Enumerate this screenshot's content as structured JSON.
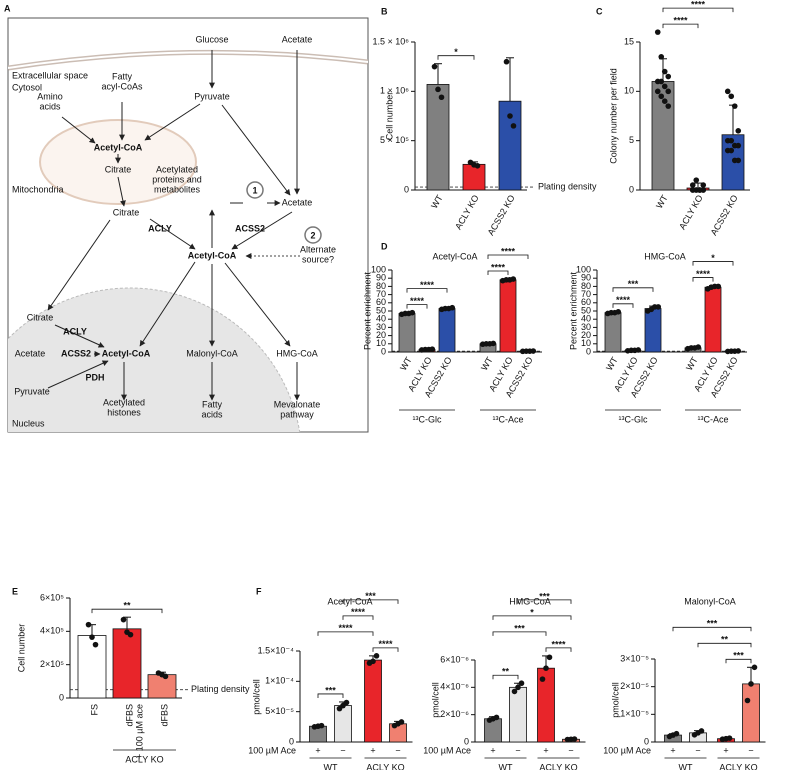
{
  "diagram": {
    "panel": "A",
    "regions": [
      "Extracellular space",
      "Cytosol",
      "Mitochondria",
      "Nucleus"
    ],
    "markers": [
      "1",
      "2"
    ],
    "nodes": [
      {
        "text": [
          "Glucose"
        ]
      },
      {
        "text": [
          "Acetate"
        ]
      },
      {
        "text": [
          "Fatty",
          "acyl-CoAs"
        ]
      },
      {
        "text": [
          "Amino",
          "acids"
        ]
      },
      {
        "text": [
          "Pyruvate"
        ]
      },
      {
        "text": [
          "Acetyl-CoA"
        ]
      },
      {
        "text": [
          "Citrate"
        ]
      },
      {
        "text": [
          "Citrate"
        ]
      },
      {
        "text": [
          "ACLY"
        ]
      },
      {
        "text": [
          "Acetylated",
          "proteins and",
          "metabolites"
        ]
      },
      {
        "text": [
          "Acetate"
        ]
      },
      {
        "text": [
          "ACSS2"
        ]
      },
      {
        "text": [
          "Acetyl-CoA"
        ]
      },
      {
        "text": [
          "Alternate",
          "source?"
        ]
      },
      {
        "text": [
          "Citrate"
        ]
      },
      {
        "text": [
          "ACLY"
        ]
      },
      {
        "text": [
          "Acetate"
        ]
      },
      {
        "text": [
          "ACSS2"
        ]
      },
      {
        "text": [
          "Acetyl-CoA"
        ]
      },
      {
        "text": [
          "PDH"
        ]
      },
      {
        "text": [
          "Pyruvate"
        ]
      },
      {
        "text": [
          "Acetylated",
          "histones"
        ]
      },
      {
        "text": [
          "Malonyl-CoA"
        ]
      },
      {
        "text": [
          "HMG-CoA"
        ]
      },
      {
        "text": [
          "Fatty",
          "acids"
        ]
      },
      {
        "text": [
          "Mevalonate",
          "pathway"
        ]
      }
    ]
  },
  "chart_data": [
    {
      "type": "bar",
      "panel": "B",
      "ylabel": "Cell number",
      "categories": [
        "WT",
        "ACLY KO",
        "ACSS2 KO"
      ],
      "colors": [
        "#808080",
        "#e8252a",
        "#2b4fa8"
      ],
      "values": [
        1070000,
        260000,
        900000
      ],
      "errors": [
        210000,
        25000,
        440000
      ],
      "points": [
        [
          1250000,
          1020000,
          940000
        ],
        [
          280000,
          255000,
          245000
        ],
        [
          1300000,
          750000,
          650000
        ]
      ],
      "ylim": [
        0,
        1500000
      ],
      "yticks": [
        0,
        {
          "value": 500000,
          "label": "5 × 10⁵"
        },
        {
          "value": 1000000,
          "label": "1 × 10⁶"
        },
        {
          "value": 1500000,
          "label": "1.5 × 10⁶"
        }
      ],
      "reference": {
        "value": 30000,
        "label": "Plating density"
      },
      "comparisons": [
        {
          "pair": [
            0,
            1
          ],
          "label": "*"
        }
      ]
    },
    {
      "type": "bar",
      "panel": "C",
      "ylabel": "Colony number per field",
      "categories": [
        "WT",
        "ACLY KO",
        "ACSS2 KO"
      ],
      "colors": [
        "#808080",
        "#e8252a",
        "#2b4fa8"
      ],
      "values": [
        11,
        0.2,
        5.6
      ],
      "errors": [
        2.3,
        0.5,
        3.0
      ],
      "points": [
        [
          16,
          13.5,
          12,
          11.5,
          11,
          11,
          10.5,
          10,
          10,
          9.5,
          9,
          8.5
        ],
        [
          0,
          0,
          0,
          0,
          0,
          0,
          0,
          0,
          0.5,
          1,
          0,
          0.5
        ],
        [
          10,
          9.5,
          8.5,
          6,
          5,
          5,
          4.5,
          4.5,
          4,
          4,
          3,
          3
        ]
      ],
      "ylim": [
        0,
        15
      ],
      "yticks": [
        0,
        5,
        10,
        15
      ],
      "comparisons": [
        {
          "pair": [
            0,
            1
          ],
          "label": "****"
        },
        {
          "pair": [
            0,
            2
          ],
          "label": "****"
        }
      ]
    },
    {
      "type": "bar",
      "panel": "D",
      "title": "Acetyl-CoA",
      "ylabel": "Percent enrichment",
      "categories": [
        "WT",
        "ACLY KO",
        "ACSS2 KO",
        "WT",
        "ACLY KO",
        "ACSS2 KO"
      ],
      "colors": [
        "#808080",
        "#e8252a",
        "#2b4fa8",
        "#808080",
        "#e8252a",
        "#2b4fa8"
      ],
      "values": [
        47,
        3,
        53,
        10,
        88,
        1
      ],
      "errors": [
        0.8,
        0.5,
        1,
        0.8,
        1,
        0.2
      ],
      "points": [
        [
          46,
          47,
          47,
          48
        ],
        [
          2.5,
          3,
          3,
          3.5
        ],
        [
          52,
          53,
          53,
          54
        ],
        [
          9.5,
          10,
          10,
          10.5
        ],
        [
          87,
          88,
          88,
          89
        ],
        [
          0.8,
          1,
          1,
          1.2
        ]
      ],
      "ylim": [
        0,
        100
      ],
      "yticks": [
        0,
        10,
        20,
        30,
        40,
        50,
        60,
        70,
        80,
        90,
        100
      ],
      "reference": {
        "value": 1.1
      },
      "group_labels": [
        {
          "label": "¹³C-Glc",
          "span": [
            0,
            2
          ]
        },
        {
          "label": "¹³C-Ace",
          "span": [
            3,
            5
          ]
        }
      ],
      "comparisons": [
        {
          "pair": [
            0,
            1
          ],
          "label": "****"
        },
        {
          "pair": [
            0,
            2
          ],
          "label": "****"
        },
        {
          "pair": [
            3,
            4
          ],
          "label": "****"
        },
        {
          "pair": [
            3,
            5
          ],
          "label": "****"
        }
      ]
    },
    {
      "type": "bar",
      "title": "HMG-CoA",
      "ylabel": "Percent enrichment",
      "categories": [
        "WT",
        "ACLY KO",
        "ACSS2 KO",
        "WT",
        "ACLY KO",
        "ACSS2 KO"
      ],
      "colors": [
        "#808080",
        "#e8252a",
        "#2b4fa8",
        "#808080",
        "#e8252a",
        "#2b4fa8"
      ],
      "values": [
        48,
        2,
        53,
        5,
        79,
        1
      ],
      "errors": [
        0.8,
        0.5,
        3,
        1,
        2,
        0.3
      ],
      "points": [
        [
          47,
          48,
          48,
          49
        ],
        [
          1.5,
          2,
          2,
          2.5
        ],
        [
          50,
          52,
          55,
          55
        ],
        [
          4,
          5,
          5,
          6
        ],
        [
          77,
          79,
          80,
          80
        ],
        [
          0.7,
          1,
          1,
          1.3
        ]
      ],
      "ylim": [
        0,
        100
      ],
      "yticks": [
        0,
        10,
        20,
        30,
        40,
        50,
        60,
        70,
        80,
        90,
        100
      ],
      "reference": {
        "value": 1.1
      },
      "group_labels": [
        {
          "label": "¹³C-Glc",
          "span": [
            0,
            2
          ]
        },
        {
          "label": "¹³C-Ace",
          "span": [
            3,
            5
          ]
        }
      ],
      "comparisons": [
        {
          "pair": [
            0,
            1
          ],
          "label": "****"
        },
        {
          "pair": [
            0,
            2
          ],
          "label": "***"
        },
        {
          "pair": [
            3,
            4
          ],
          "label": "****"
        },
        {
          "pair": [
            3,
            5
          ],
          "label": "*"
        }
      ]
    },
    {
      "type": "bar",
      "panel": "E",
      "ylabel": "Cell number",
      "categories": [
        "FS",
        "dFBS",
        "dFBS"
      ],
      "sub_labels": [
        null,
        "+ 100 µM ace",
        null
      ],
      "colors": [
        "#ffffff",
        "#e8252a",
        "#f08070"
      ],
      "values": [
        375000,
        415000,
        140000
      ],
      "errors": [
        65000,
        70000,
        15000
      ],
      "points": [
        [
          440000,
          365000,
          320000
        ],
        [
          470000,
          395000,
          380000
        ],
        [
          150000,
          140000,
          130000
        ]
      ],
      "ylim": [
        0,
        600000
      ],
      "yticks": [
        0,
        {
          "value": 200000,
          "label": "2×10⁵"
        },
        {
          "value": 400000,
          "label": "4×10⁵"
        },
        {
          "value": 600000,
          "label": "6×10⁵"
        }
      ],
      "reference": {
        "value": 50000,
        "label": "Plating density"
      },
      "group_labels": [
        {
          "label": "ACLY KO",
          "span": [
            1,
            2
          ]
        }
      ],
      "comparisons": [
        {
          "pair": [
            0,
            2
          ],
          "label": "**"
        }
      ]
    },
    {
      "type": "bar",
      "panel": "F",
      "title": "Acetyl-CoA",
      "ylabel": "pmol/cell",
      "treatment_label": "100 µM Ace",
      "treatment": [
        "+",
        "−",
        "+",
        "−"
      ],
      "colors": [
        "#808080",
        "#e6e6e6",
        "#e8252a",
        "#f08070"
      ],
      "values": [
        2.6e-05,
        6e-05,
        0.000135,
        3e-05
      ],
      "errors": [
        1e-06,
        6e-06,
        7e-06,
        4e-06
      ],
      "points": [
        [
          2.5e-05,
          2.6e-05,
          2.7e-05
        ],
        [
          5.5e-05,
          6e-05,
          6.5e-05
        ],
        [
          0.00013,
          0.000133,
          0.000142
        ],
        [
          2.7e-05,
          3e-05,
          3.3e-05
        ]
      ],
      "ylim": [
        0,
        0.00015
      ],
      "yticks": [
        0,
        {
          "value": 5e-05,
          "label": "5×10⁻⁵"
        },
        {
          "value": 0.0001,
          "label": "1×10⁻⁴"
        },
        {
          "value": 0.00015,
          "label": "1.5×10⁻⁴"
        }
      ],
      "group_labels": [
        {
          "label": "WT",
          "span": [
            0,
            1
          ]
        },
        {
          "label": "ACLY KO",
          "span": [
            2,
            3
          ]
        }
      ],
      "comparisons": [
        {
          "pair": [
            0,
            1
          ],
          "label": "***"
        },
        {
          "pair": [
            2,
            3
          ],
          "label": "****"
        },
        {
          "pair": [
            0,
            2
          ],
          "label": "****"
        },
        {
          "pair": [
            1,
            2
          ],
          "label": "****"
        },
        {
          "pair": [
            1,
            3
          ],
          "label": "***"
        }
      ]
    },
    {
      "type": "bar",
      "title": "HMG-CoA",
      "ylabel": "pmol/cell",
      "treatment_label": "100 µM Ace",
      "treatment": [
        "+",
        "−",
        "+",
        "−"
      ],
      "colors": [
        "#808080",
        "#e6e6e6",
        "#e8252a",
        "#f08070"
      ],
      "values": [
        1.7e-06,
        4e-06,
        5.4e-06,
        2e-07
      ],
      "errors": [
        1.5e-07,
        3e-07,
        9e-07,
        2e-08
      ],
      "points": [
        [
          1.6e-06,
          1.7e-06,
          1.8e-06
        ],
        [
          3.7e-06,
          4e-06,
          4.3e-06
        ],
        [
          4.6e-06,
          5.4e-06,
          6.2e-06
        ],
        [
          1.8e-07,
          2e-07,
          2.2e-07
        ]
      ],
      "ylim": [
        0,
        6e-06
      ],
      "yticks": [
        0,
        {
          "value": 2e-06,
          "label": "2×10⁻⁶"
        },
        {
          "value": 4e-06,
          "label": "4×10⁻⁶"
        },
        {
          "value": 6e-06,
          "label": "6×10⁻⁶"
        }
      ],
      "group_labels": [
        {
          "label": "WT",
          "span": [
            0,
            1
          ]
        },
        {
          "label": "ACLY KO",
          "span": [
            2,
            3
          ]
        }
      ],
      "comparisons": [
        {
          "pair": [
            0,
            1
          ],
          "label": "**"
        },
        {
          "pair": [
            2,
            3
          ],
          "label": "****"
        },
        {
          "pair": [
            0,
            2
          ],
          "label": "***"
        },
        {
          "pair": [
            0,
            3
          ],
          "label": "*"
        },
        {
          "pair": [
            1,
            3
          ],
          "label": "***"
        }
      ]
    },
    {
      "type": "bar",
      "title": "Malonyl-CoA",
      "ylabel": "pmol/cell",
      "treatment_label": "100 µM Ace",
      "treatment": [
        "+",
        "−",
        "+",
        "−"
      ],
      "colors": [
        "#808080",
        "#e6e6e6",
        "#e8252a",
        "#f08070"
      ],
      "values": [
        2.5e-06,
        3.3e-06,
        1.2e-06,
        2.1e-05
      ],
      "errors": [
        5e-07,
        8e-07,
        2e-07,
        6e-06
      ],
      "points": [
        [
          2e-06,
          2.5e-06,
          3e-06
        ],
        [
          2.6e-06,
          3.3e-06,
          4e-06
        ],
        [
          1e-06,
          1.2e-06,
          1.4e-06
        ],
        [
          1.5e-05,
          2.1e-05,
          2.7e-05
        ]
      ],
      "ylim": [
        0,
        3e-05
      ],
      "yticks": [
        0,
        {
          "value": 1e-05,
          "label": "1×10⁻⁵"
        },
        {
          "value": 2e-05,
          "label": "2×10⁻⁵"
        },
        {
          "value": 3e-05,
          "label": "3×10⁻⁵"
        }
      ],
      "group_labels": [
        {
          "label": "WT",
          "span": [
            0,
            1
          ]
        },
        {
          "label": "ACLY KO",
          "span": [
            2,
            3
          ]
        }
      ],
      "comparisons": [
        {
          "pair": [
            2,
            3
          ],
          "label": "***"
        },
        {
          "pair": [
            1,
            3
          ],
          "label": "**"
        },
        {
          "pair": [
            0,
            3
          ],
          "label": "***"
        }
      ]
    }
  ]
}
